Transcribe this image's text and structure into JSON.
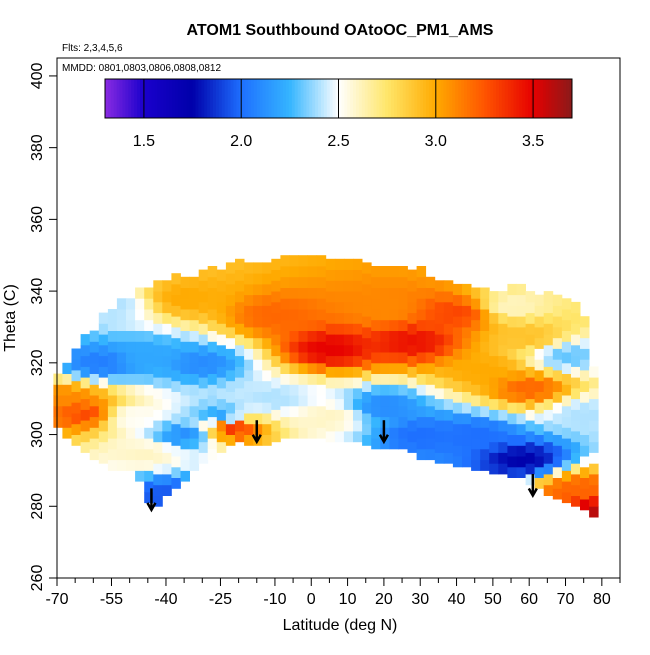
{
  "chart_data": {
    "type": "heatmap",
    "title": "ATOM1 Southbound OAtoOC_PM1_AMS",
    "annotations": {
      "flights": "Flts: 2,3,4,5,6",
      "dates": "MMDD: 0801,0803,0806,0808,0812"
    },
    "xlabel": "Latitude (deg N)",
    "ylabel": "Theta (C)",
    "xlim": [
      -70,
      85
    ],
    "ylim": [
      260,
      405
    ],
    "x_major_ticks": [
      -70,
      -55,
      -40,
      -25,
      -10,
      0,
      10,
      20,
      30,
      40,
      50,
      60,
      70,
      80
    ],
    "x_tick_labels": [
      "-70",
      "-55",
      "-40",
      "-25",
      "-10",
      "0",
      "10",
      "20",
      "30",
      "40",
      "50",
      "60",
      "70",
      "80"
    ],
    "x_minor_ticks": [
      -65,
      -60,
      -50,
      -45,
      -35,
      -30,
      -20,
      -15,
      -5,
      5,
      15,
      25,
      35,
      45,
      55,
      65,
      75,
      85
    ],
    "y_ticks": [
      260,
      280,
      300,
      320,
      340,
      360,
      380,
      400
    ],
    "y_tick_labels": [
      "260",
      "280",
      "300",
      "320",
      "340",
      "360",
      "380",
      "400"
    ],
    "colorbar": {
      "range": [
        1.3,
        3.7
      ],
      "ticks": [
        1.5,
        2.0,
        2.5,
        3.0,
        3.5
      ],
      "tick_labels": [
        "1.5",
        "2.0",
        "2.5",
        "3.0",
        "3.5"
      ],
      "stops": [
        {
          "v": 1.3,
          "color": "#8a2be2"
        },
        {
          "v": 1.5,
          "color": "#1a00cc"
        },
        {
          "v": 1.75,
          "color": "#0000aa"
        },
        {
          "v": 2.0,
          "color": "#1e6fff"
        },
        {
          "v": 2.25,
          "color": "#35b5ff"
        },
        {
          "v": 2.5,
          "color": "#ffffff"
        },
        {
          "v": 2.75,
          "color": "#ffe66a"
        },
        {
          "v": 3.0,
          "color": "#ffaa00"
        },
        {
          "v": 3.25,
          "color": "#ff5500"
        },
        {
          "v": 3.5,
          "color": "#e60000"
        },
        {
          "v": 3.7,
          "color": "#8b1a1a"
        }
      ]
    },
    "lat_bin_width": 2.5,
    "theta_bin_height": 3,
    "theta_bounds": [
      {
        "lat": -71,
        "bottom": 304,
        "top": 314
      },
      {
        "lat": -68,
        "bottom": 300,
        "top": 318
      },
      {
        "lat": -62,
        "bottom": 295,
        "top": 326
      },
      {
        "lat": -55,
        "bottom": 291,
        "top": 334
      },
      {
        "lat": -48,
        "bottom": 290,
        "top": 339
      },
      {
        "lat": -44,
        "bottom": 279,
        "top": 340
      },
      {
        "lat": -38,
        "bottom": 285,
        "top": 342
      },
      {
        "lat": -30,
        "bottom": 292,
        "top": 344
      },
      {
        "lat": -20,
        "bottom": 299,
        "top": 346
      },
      {
        "lat": -15,
        "bottom": 297,
        "top": 347
      },
      {
        "lat": -5,
        "bottom": 300,
        "top": 348
      },
      {
        "lat": 5,
        "bottom": 299,
        "top": 347
      },
      {
        "lat": 15,
        "bottom": 298,
        "top": 347
      },
      {
        "lat": 20,
        "bottom": 296,
        "top": 347
      },
      {
        "lat": 25,
        "bottom": 297,
        "top": 346
      },
      {
        "lat": 30,
        "bottom": 294,
        "top": 345
      },
      {
        "lat": 40,
        "bottom": 292,
        "top": 341
      },
      {
        "lat": 50,
        "bottom": 290,
        "top": 340
      },
      {
        "lat": 58,
        "bottom": 288,
        "top": 339
      },
      {
        "lat": 65,
        "bottom": 284,
        "top": 339
      },
      {
        "lat": 72,
        "bottom": 281,
        "top": 335
      },
      {
        "lat": 76,
        "bottom": 279,
        "top": 330
      },
      {
        "lat": 80,
        "bottom": 275,
        "top": 303
      }
    ],
    "field_anchors": [
      {
        "lat": 5,
        "theta": 324,
        "value": 3.5
      },
      {
        "lat": -10,
        "theta": 333,
        "value": 3.2
      },
      {
        "lat": 20,
        "theta": 335,
        "value": 3.1
      },
      {
        "lat": 28,
        "theta": 326,
        "value": 3.45
      },
      {
        "lat": -35,
        "theta": 338,
        "value": 3.0
      },
      {
        "lat": -55,
        "theta": 336,
        "value": 2.4
      },
      {
        "lat": -58,
        "theta": 320,
        "value": 2.05
      },
      {
        "lat": -45,
        "theta": 322,
        "value": 2.2
      },
      {
        "lat": -30,
        "theta": 320,
        "value": 2.1
      },
      {
        "lat": -62,
        "theta": 306,
        "value": 3.3
      },
      {
        "lat": -67,
        "theta": 310,
        "value": 3.1
      },
      {
        "lat": -50,
        "theta": 305,
        "value": 2.5
      },
      {
        "lat": -45,
        "theta": 295,
        "value": 2.6
      },
      {
        "lat": -40,
        "theta": 283,
        "value": 1.95
      },
      {
        "lat": -35,
        "theta": 300,
        "value": 2.1
      },
      {
        "lat": -25,
        "theta": 305,
        "value": 2.15
      },
      {
        "lat": -22,
        "theta": 302,
        "value": 3.4
      },
      {
        "lat": -10,
        "theta": 310,
        "value": 2.4
      },
      {
        "lat": 5,
        "theta": 305,
        "value": 2.6
      },
      {
        "lat": 20,
        "theta": 308,
        "value": 2.1
      },
      {
        "lat": 30,
        "theta": 300,
        "value": 2.0
      },
      {
        "lat": 45,
        "theta": 300,
        "value": 2.0
      },
      {
        "lat": 58,
        "theta": 293,
        "value": 1.75
      },
      {
        "lat": 48,
        "theta": 318,
        "value": 3.0
      },
      {
        "lat": 60,
        "theta": 313,
        "value": 3.2
      },
      {
        "lat": 60,
        "theta": 327,
        "value": 2.9
      },
      {
        "lat": 70,
        "theta": 322,
        "value": 2.3
      },
      {
        "lat": 75,
        "theta": 306,
        "value": 2.4
      },
      {
        "lat": 73,
        "theta": 285,
        "value": 3.2
      },
      {
        "lat": 78,
        "theta": 278,
        "value": 3.6
      },
      {
        "lat": 40,
        "theta": 334,
        "value": 3.3
      },
      {
        "lat": 55,
        "theta": 336,
        "value": 2.6
      }
    ],
    "tropopause_arrows": [
      {
        "lat": -44,
        "theta": 283
      },
      {
        "lat": -15,
        "theta": 302
      },
      {
        "lat": 20,
        "theta": 302
      },
      {
        "lat": 61,
        "theta": 287
      }
    ]
  }
}
